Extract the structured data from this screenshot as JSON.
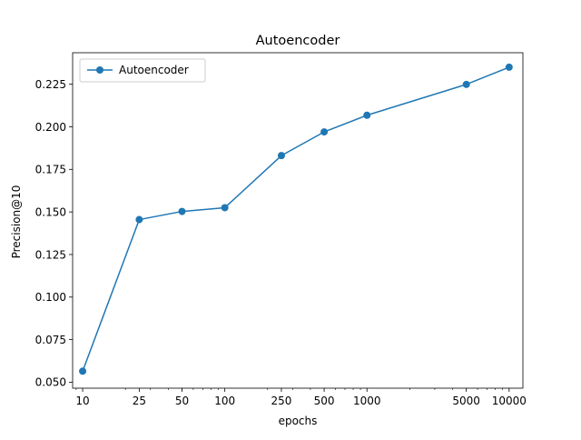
{
  "chart_data": {
    "type": "line",
    "title": "Autoencoder",
    "xlabel": "epochs",
    "ylabel": "Precision@10",
    "x_scale": "log",
    "xlim": [
      8.5,
      12500
    ],
    "ylim": [
      0.0465,
      0.2435
    ],
    "x_ticks": [
      10,
      25,
      50,
      100,
      250,
      500,
      1000,
      5000,
      10000
    ],
    "x_tick_labels": [
      "10",
      "25",
      "50",
      "100",
      "250",
      "500",
      "1000",
      "5000",
      "10000"
    ],
    "y_ticks": [
      0.05,
      0.075,
      0.1,
      0.125,
      0.15,
      0.175,
      0.2,
      0.225
    ],
    "y_tick_labels": [
      "0.050",
      "0.075",
      "0.100",
      "0.125",
      "0.150",
      "0.175",
      "0.200",
      "0.225"
    ],
    "legend_position": "top-left",
    "grid": false,
    "series": [
      {
        "name": "Autoencoder",
        "color": "#1f77b4",
        "marker": "circle",
        "x": [
          10,
          25,
          50,
          100,
          250,
          500,
          1000,
          5000,
          10000
        ],
        "y": [
          0.0565,
          0.1455,
          0.1503,
          0.1525,
          0.1831,
          0.197,
          0.2068,
          0.2249,
          0.235
        ]
      }
    ]
  }
}
